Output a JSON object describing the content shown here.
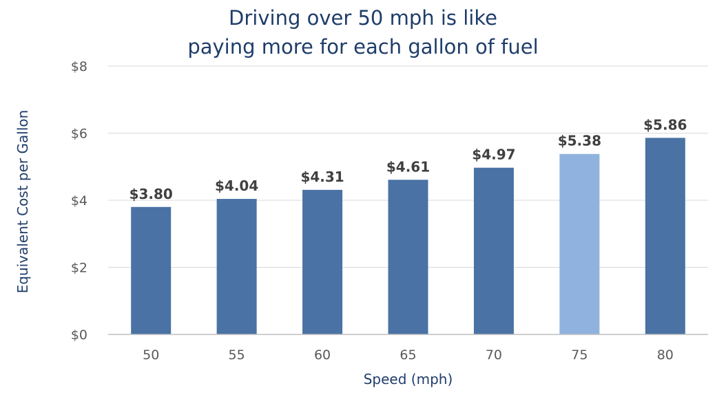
{
  "chart_data": {
    "type": "bar",
    "title_lines": [
      "Driving over 50 mph is like",
      "paying more for each gallon of fuel"
    ],
    "xlabel": "Speed (mph)",
    "ylabel": "Equivalent Cost per Gallon",
    "categories": [
      "50",
      "55",
      "60",
      "65",
      "70",
      "75",
      "80"
    ],
    "values": [
      3.8,
      4.04,
      4.31,
      4.61,
      4.97,
      5.38,
      5.86
    ],
    "data_labels": [
      "$3.80",
      "$4.04",
      "$4.31",
      "$4.61",
      "$4.97",
      "$5.38",
      "$5.86"
    ],
    "ylim": [
      0,
      8
    ],
    "yticks": [
      0,
      2,
      4,
      6,
      8
    ],
    "ytick_labels": [
      "$0",
      "$2",
      "$4",
      "$6",
      "$8"
    ],
    "grid": true,
    "legend": "none",
    "colors": {
      "bar": "#4a72a4",
      "highlight_bar": "#8fb3de",
      "highlight_index": 5,
      "gridline": "#d9d9d9",
      "title": "#1f3d6a"
    }
  }
}
